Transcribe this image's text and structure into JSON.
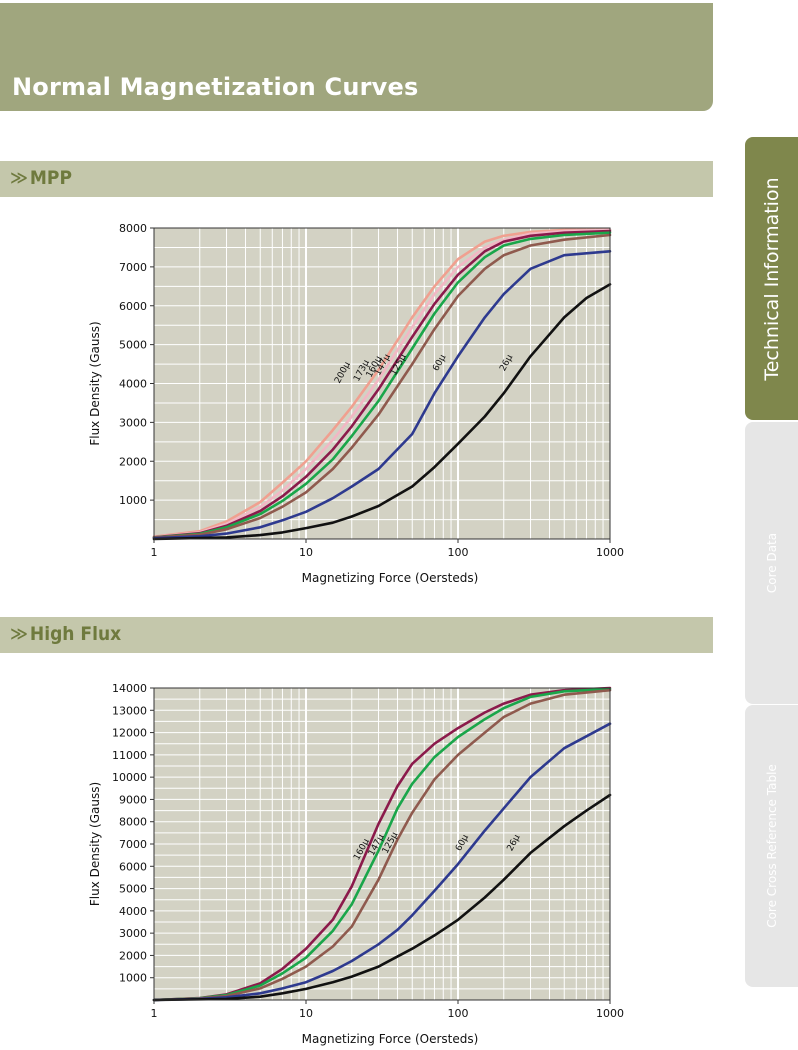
{
  "page": {
    "title": "Normal Magnetization Curves",
    "sections": [
      {
        "chevron": "≫",
        "label": "MPP"
      },
      {
        "chevron": "≫",
        "label": "High Flux"
      }
    ]
  },
  "sidebar": {
    "tabs": [
      {
        "label": "Technical Information",
        "active": true
      },
      {
        "label": "Core Data",
        "active": false
      },
      {
        "label": "Core Cross Reference Table",
        "active": false
      }
    ]
  },
  "colors": {
    "header": "#a0a67e",
    "section_bar": "#c4c7ab",
    "plot_bg": "#d3d2c4",
    "sidebar_active": "#7f874c"
  },
  "chart_data": [
    {
      "type": "line",
      "title": "",
      "xlabel": "Magnetizing Force (Oersteds)",
      "ylabel": "Flux Density (Gauss)",
      "xscale": "log",
      "xlim": [
        1,
        1000
      ],
      "ylim": [
        0,
        8000
      ],
      "x_ticks": [
        1,
        10,
        100,
        1000
      ],
      "y_ticks": [
        1000,
        2000,
        3000,
        4000,
        5000,
        6000,
        7000,
        8000
      ],
      "grid": true,
      "series": [
        {
          "name": "200µ",
          "color": "#f0a090",
          "points": [
            [
              1,
              60
            ],
            [
              2,
              200
            ],
            [
              3,
              450
            ],
            [
              5,
              950
            ],
            [
              7,
              1450
            ],
            [
              10,
              2000
            ],
            [
              15,
              2800
            ],
            [
              20,
              3400
            ],
            [
              30,
              4350
            ],
            [
              50,
              5700
            ],
            [
              70,
              6500
            ],
            [
              100,
              7200
            ],
            [
              150,
              7650
            ],
            [
              200,
              7800
            ],
            [
              300,
              7900
            ],
            [
              500,
              7950
            ],
            [
              1000,
              7950
            ]
          ]
        },
        {
          "name": "173µ",
          "color": "#f2b7c4",
          "points": [
            [
              1,
              50
            ],
            [
              2,
              170
            ],
            [
              3,
              390
            ],
            [
              5,
              820
            ],
            [
              7,
              1250
            ],
            [
              10,
              1800
            ],
            [
              15,
              2550
            ],
            [
              20,
              3150
            ],
            [
              30,
              4100
            ],
            [
              50,
              5450
            ],
            [
              70,
              6300
            ],
            [
              100,
              7000
            ],
            [
              150,
              7500
            ],
            [
              200,
              7700
            ],
            [
              300,
              7850
            ],
            [
              500,
              7920
            ],
            [
              1000,
              7950
            ]
          ]
        },
        {
          "name": "160µ",
          "color": "#8b1a4b",
          "points": [
            [
              1,
              45
            ],
            [
              2,
              150
            ],
            [
              3,
              340
            ],
            [
              5,
              720
            ],
            [
              7,
              1100
            ],
            [
              10,
              1600
            ],
            [
              15,
              2300
            ],
            [
              20,
              2900
            ],
            [
              30,
              3850
            ],
            [
              50,
              5200
            ],
            [
              70,
              6050
            ],
            [
              100,
              6800
            ],
            [
              150,
              7400
            ],
            [
              200,
              7650
            ],
            [
              300,
              7800
            ],
            [
              500,
              7880
            ],
            [
              1000,
              7920
            ]
          ]
        },
        {
          "name": "147µ",
          "color": "#1aa64a",
          "points": [
            [
              1,
              40
            ],
            [
              2,
              130
            ],
            [
              3,
              300
            ],
            [
              5,
              640
            ],
            [
              7,
              980
            ],
            [
              10,
              1420
            ],
            [
              15,
              2050
            ],
            [
              20,
              2650
            ],
            [
              30,
              3550
            ],
            [
              50,
              4900
            ],
            [
              70,
              5800
            ],
            [
              100,
              6600
            ],
            [
              150,
              7250
            ],
            [
              200,
              7550
            ],
            [
              300,
              7720
            ],
            [
              500,
              7820
            ],
            [
              1000,
              7880
            ]
          ]
        },
        {
          "name": "125µ",
          "color": "#8f5a4e",
          "points": [
            [
              1,
              35
            ],
            [
              2,
              110
            ],
            [
              3,
              250
            ],
            [
              5,
              540
            ],
            [
              7,
              830
            ],
            [
              10,
              1200
            ],
            [
              15,
              1800
            ],
            [
              20,
              2350
            ],
            [
              30,
              3200
            ],
            [
              50,
              4500
            ],
            [
              70,
              5400
            ],
            [
              100,
              6250
            ],
            [
              150,
              6950
            ],
            [
              200,
              7300
            ],
            [
              300,
              7550
            ],
            [
              500,
              7700
            ],
            [
              1000,
              7820
            ]
          ]
        },
        {
          "name": "60µ",
          "color": "#2e3a8f",
          "points": [
            [
              1,
              20
            ],
            [
              2,
              70
            ],
            [
              3,
              140
            ],
            [
              5,
              300
            ],
            [
              7,
              480
            ],
            [
              10,
              700
            ],
            [
              15,
              1050
            ],
            [
              20,
              1350
            ],
            [
              30,
              1800
            ],
            [
              50,
              2700
            ],
            [
              70,
              3750
            ],
            [
              100,
              4700
            ],
            [
              150,
              5700
            ],
            [
              200,
              6300
            ],
            [
              300,
              6950
            ],
            [
              500,
              7300
            ],
            [
              1000,
              7400
            ]
          ]
        },
        {
          "name": "26µ",
          "color": "#111111",
          "points": [
            [
              1,
              0
            ],
            [
              3,
              40
            ],
            [
              5,
              100
            ],
            [
              7,
              170
            ],
            [
              10,
              280
            ],
            [
              15,
              420
            ],
            [
              20,
              580
            ],
            [
              30,
              850
            ],
            [
              50,
              1350
            ],
            [
              70,
              1850
            ],
            [
              100,
              2450
            ],
            [
              150,
              3150
            ],
            [
              200,
              3750
            ],
            [
              300,
              4700
            ],
            [
              500,
              5700
            ],
            [
              700,
              6200
            ],
            [
              1000,
              6550
            ]
          ]
        }
      ],
      "labels": [
        {
          "text": "200µ",
          "x": 18,
          "y": 4250
        },
        {
          "text": "173µ",
          "x": 24,
          "y": 4300
        },
        {
          "text": "160µ",
          "x": 29,
          "y": 4400
        },
        {
          "text": "147µ",
          "x": 33,
          "y": 4450
        },
        {
          "text": "125µ",
          "x": 42,
          "y": 4450
        },
        {
          "text": "60µ",
          "x": 78,
          "y": 4500
        },
        {
          "text": "26µ",
          "x": 215,
          "y": 4500
        }
      ]
    },
    {
      "type": "line",
      "title": "",
      "xlabel": "Magnetizing Force (Oersteds)",
      "ylabel": "Flux Density (Gauss)",
      "xscale": "log",
      "xlim": [
        1,
        1000
      ],
      "ylim": [
        0,
        14000
      ],
      "x_ticks": [
        1,
        10,
        100,
        1000
      ],
      "y_ticks": [
        1000,
        2000,
        3000,
        4000,
        5000,
        6000,
        7000,
        8000,
        9000,
        10000,
        11000,
        12000,
        13000,
        14000
      ],
      "grid": true,
      "series": [
        {
          "name": "160µ",
          "color": "#8b1a4b",
          "points": [
            [
              1,
              0
            ],
            [
              2,
              90
            ],
            [
              3,
              250
            ],
            [
              5,
              750
            ],
            [
              7,
              1400
            ],
            [
              10,
              2300
            ],
            [
              15,
              3600
            ],
            [
              20,
              5100
            ],
            [
              30,
              7900
            ],
            [
              40,
              9600
            ],
            [
              50,
              10600
            ],
            [
              70,
              11500
            ],
            [
              100,
              12200
            ],
            [
              150,
              12900
            ],
            [
              200,
              13300
            ],
            [
              300,
              13700
            ],
            [
              500,
              13900
            ],
            [
              1000,
              14000
            ]
          ]
        },
        {
          "name": "147µ",
          "color": "#1aa64a",
          "points": [
            [
              1,
              0
            ],
            [
              2,
              80
            ],
            [
              3,
              220
            ],
            [
              5,
              650
            ],
            [
              7,
              1200
            ],
            [
              10,
              1900
            ],
            [
              15,
              3100
            ],
            [
              20,
              4300
            ],
            [
              30,
              6700
            ],
            [
              40,
              8600
            ],
            [
              50,
              9700
            ],
            [
              70,
              10900
            ],
            [
              100,
              11800
            ],
            [
              150,
              12600
            ],
            [
              200,
              13100
            ],
            [
              300,
              13600
            ],
            [
              500,
              13850
            ],
            [
              1000,
              13950
            ]
          ]
        },
        {
          "name": "125µ",
          "color": "#8f5a4e",
          "points": [
            [
              1,
              0
            ],
            [
              2,
              70
            ],
            [
              3,
              180
            ],
            [
              5,
              520
            ],
            [
              7,
              950
            ],
            [
              10,
              1500
            ],
            [
              15,
              2400
            ],
            [
              20,
              3300
            ],
            [
              30,
              5400
            ],
            [
              40,
              7200
            ],
            [
              50,
              8400
            ],
            [
              70,
              9900
            ],
            [
              100,
              11000
            ],
            [
              150,
              12000
            ],
            [
              200,
              12700
            ],
            [
              300,
              13300
            ],
            [
              500,
              13700
            ],
            [
              1000,
              13900
            ]
          ]
        },
        {
          "name": "60µ",
          "color": "#2e3a8f",
          "points": [
            [
              1,
              0
            ],
            [
              2,
              50
            ],
            [
              3,
              120
            ],
            [
              5,
              300
            ],
            [
              7,
              520
            ],
            [
              10,
              800
            ],
            [
              15,
              1300
            ],
            [
              20,
              1750
            ],
            [
              30,
              2500
            ],
            [
              40,
              3150
            ],
            [
              50,
              3800
            ],
            [
              70,
              4900
            ],
            [
              100,
              6100
            ],
            [
              150,
              7600
            ],
            [
              200,
              8600
            ],
            [
              300,
              10000
            ],
            [
              500,
              11300
            ],
            [
              1000,
              12400
            ]
          ]
        },
        {
          "name": "26µ",
          "color": "#111111",
          "points": [
            [
              1,
              0
            ],
            [
              3,
              50
            ],
            [
              5,
              150
            ],
            [
              7,
              300
            ],
            [
              10,
              500
            ],
            [
              15,
              800
            ],
            [
              20,
              1050
            ],
            [
              30,
              1500
            ],
            [
              50,
              2300
            ],
            [
              70,
              2900
            ],
            [
              100,
              3600
            ],
            [
              150,
              4600
            ],
            [
              200,
              5400
            ],
            [
              300,
              6600
            ],
            [
              500,
              7800
            ],
            [
              700,
              8500
            ],
            [
              1000,
              9200
            ]
          ]
        }
      ],
      "labels": [
        {
          "text": "160µ",
          "x": 24,
          "y": 6700
        },
        {
          "text": "147µ",
          "x": 30,
          "y": 6900
        },
        {
          "text": "125µ",
          "x": 37,
          "y": 7000
        },
        {
          "text": "60µ",
          "x": 110,
          "y": 7000
        },
        {
          "text": "26µ",
          "x": 240,
          "y": 7000
        }
      ]
    }
  ]
}
